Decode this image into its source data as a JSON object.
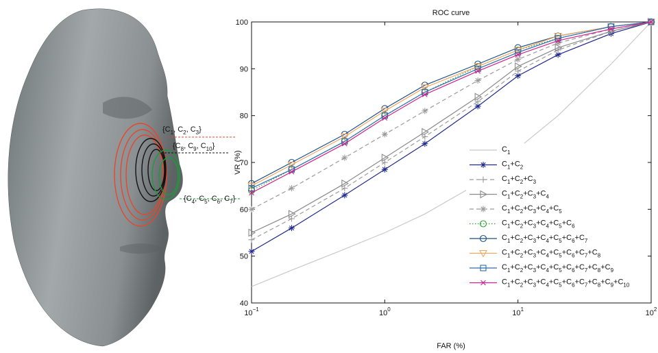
{
  "figure": {
    "annotations": [
      {
        "text": "{C1, C2, C3}",
        "color": "#e8452a"
      },
      {
        "text": "{C8, C9, C10}",
        "color": "#111111"
      },
      {
        "text": "{C4, C5, C6, C7}",
        "color": "#1e9a3a"
      }
    ]
  },
  "chart_data": {
    "type": "line",
    "title": "ROC curve",
    "xlabel": "FAR (%)",
    "ylabel": "VR (%)",
    "xscale": "log",
    "legend": "lower right",
    "xlim": [
      0.1,
      100
    ],
    "xticks": [
      {
        "value": 0.1,
        "label": "10−1"
      },
      {
        "value": 1,
        "label": "100"
      },
      {
        "value": 10,
        "label": "101"
      },
      {
        "value": 100,
        "label": "102"
      }
    ],
    "ylim": [
      40,
      100
    ],
    "yticks": [
      40,
      50,
      60,
      70,
      80,
      90,
      100
    ],
    "x": [
      0.1,
      0.2,
      0.5,
      1,
      2,
      5,
      10,
      20,
      50,
      100
    ],
    "series": [
      {
        "name": "C1",
        "color": "#c8c8c8",
        "marker": "none",
        "dash": false,
        "values": [
          43.5,
          47,
          51.5,
          55,
          59,
          65.5,
          73,
          80,
          91,
          100
        ]
      },
      {
        "name": "C1+C2",
        "color": "#1f2a8c",
        "marker": "star",
        "dash": false,
        "values": [
          51,
          56,
          63,
          68.5,
          74,
          82,
          88.5,
          93,
          97.5,
          100
        ]
      },
      {
        "name": "C1+C2+C3",
        "color": "#9a9a9a",
        "marker": "plus",
        "dash": true,
        "values": [
          53.5,
          58,
          64.5,
          70,
          75.5,
          83,
          89.5,
          94,
          98,
          100
        ]
      },
      {
        "name": "C1+C2+C3+C4",
        "color": "#8a8a8a",
        "marker": "tri-right",
        "dash": false,
        "values": [
          55,
          59,
          65.5,
          71,
          76.5,
          84,
          90.5,
          94.5,
          98,
          100
        ]
      },
      {
        "name": "C1+C2+C3+C4+C5",
        "color": "#9a9a9a",
        "marker": "star",
        "dash": true,
        "values": [
          60,
          64.5,
          71,
          76,
          81,
          87.5,
          92,
          95.5,
          98.5,
          100
        ]
      },
      {
        "name": "C1+C2+C3+C4+C5+C6",
        "color": "#2ca02c",
        "marker": "circle",
        "dash": true,
        "values": [
          64,
          68.5,
          74.5,
          80,
          85,
          90.5,
          94,
          96.5,
          99,
          100
        ]
      },
      {
        "name": "C1+C2+C3+C4+C5+C6+C7",
        "color": "#1a4f8a",
        "marker": "circle",
        "dash": false,
        "values": [
          65.5,
          70,
          76,
          81.5,
          86.5,
          91,
          94.5,
          97,
          99,
          100
        ]
      },
      {
        "name": "C1+C2+C3+C4+C5+C6+C7+C8",
        "color": "#f0a860",
        "marker": "tri-down",
        "dash": false,
        "values": [
          65,
          69.5,
          75.5,
          81,
          86,
          90.5,
          94,
          97,
          99,
          100
        ]
      },
      {
        "name": "C1+C2+C3+C4+C5+C6+C7+C8+C9",
        "color": "#2b6cb0",
        "marker": "square",
        "dash": false,
        "values": [
          64.5,
          68.5,
          74.5,
          80,
          85,
          90,
          93.5,
          96.5,
          99,
          100
        ]
      },
      {
        "name": "C1+C2+C3+C4+C5+C6+C7+C8+C9+C10",
        "color": "#d0208c",
        "marker": "x",
        "dash": false,
        "values": [
          63.5,
          68,
          74,
          79.5,
          84.5,
          89.5,
          93,
          96,
          98.5,
          100
        ]
      }
    ]
  }
}
